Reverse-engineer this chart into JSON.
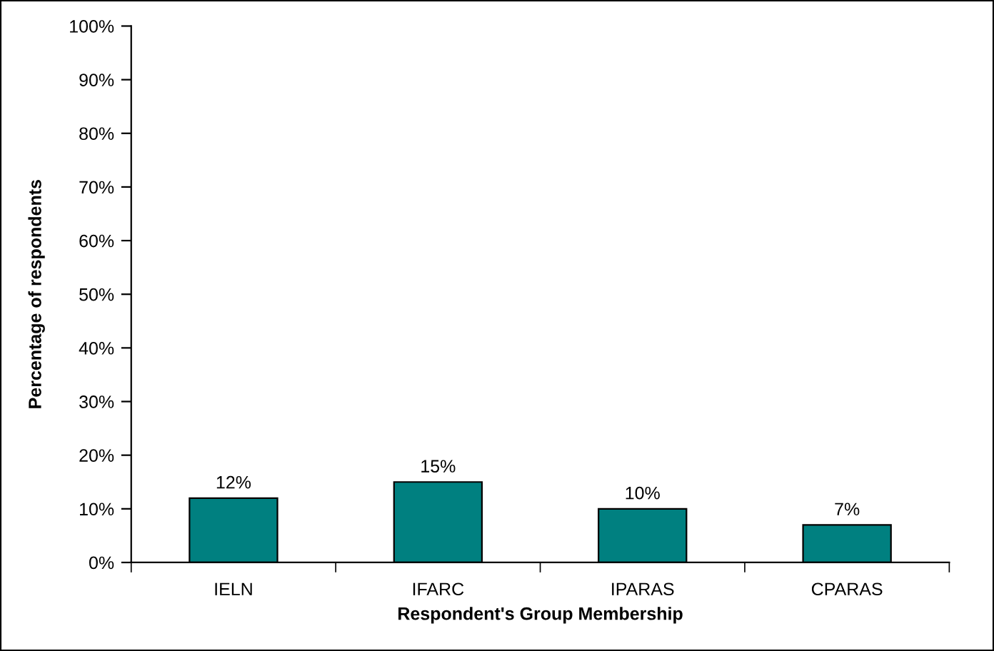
{
  "chart_data": {
    "type": "bar",
    "xlabel": "Respondent's Group Membership",
    "ylabel": "Percentage of respondents",
    "categories": [
      "IELN",
      "IFARC",
      "IPARAS",
      "CPARAS"
    ],
    "values": [
      12,
      15,
      10,
      7
    ],
    "color": "#008080",
    "value_labels": [
      "12%",
      "15%",
      "10%",
      "7%"
    ],
    "ylim": [
      0,
      100
    ],
    "yticks": [
      {
        "value": 0,
        "label": "0%"
      },
      {
        "value": 10,
        "label": "10%"
      },
      {
        "value": 20,
        "label": "20%"
      },
      {
        "value": 30,
        "label": "30%"
      },
      {
        "value": 40,
        "label": "40%"
      },
      {
        "value": 50,
        "label": "50%"
      },
      {
        "value": 60,
        "label": "60%"
      },
      {
        "value": 70,
        "label": "70%"
      },
      {
        "value": 80,
        "label": "80%"
      },
      {
        "value": 90,
        "label": "90%"
      },
      {
        "value": 100,
        "label": "100%"
      }
    ],
    "grid": false
  }
}
